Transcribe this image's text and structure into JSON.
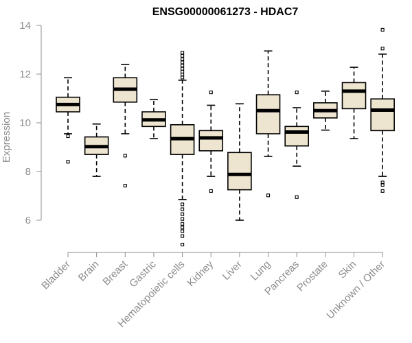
{
  "chart_data": {
    "type": "boxplot",
    "title": "ENSG00000061273 - HDAC7",
    "xlabel": "",
    "ylabel": "Expression",
    "ylim": [
      5,
      14
    ],
    "yticks": [
      6,
      8,
      10,
      12,
      14
    ],
    "grid": false,
    "colors": {
      "box_fill": "#ede5cf",
      "box_stroke": "#000000",
      "axis": "#8c8c8c"
    },
    "categories": [
      "Bladder",
      "Brain",
      "Breast",
      "Gastric",
      "Hematopoietic cells",
      "Kidney",
      "Liver",
      "Lung",
      "Pancreas",
      "Prostate",
      "Skin",
      "Unknown / Other"
    ],
    "boxes": [
      {
        "name": "Bladder",
        "whisker_low": 9.55,
        "q1": 10.45,
        "median": 10.75,
        "q3": 11.05,
        "whisker_high": 11.85,
        "outliers": [
          9.45,
          8.4
        ]
      },
      {
        "name": "Brain",
        "whisker_low": 7.8,
        "q1": 8.7,
        "median": 9.02,
        "q3": 9.42,
        "whisker_high": 9.95,
        "outliers": []
      },
      {
        "name": "Breast",
        "whisker_low": 9.55,
        "q1": 10.85,
        "median": 11.38,
        "q3": 11.85,
        "whisker_high": 12.4,
        "outliers": [
          8.65,
          7.42
        ]
      },
      {
        "name": "Gastric",
        "whisker_low": 9.35,
        "q1": 9.85,
        "median": 10.12,
        "q3": 10.45,
        "whisker_high": 10.95,
        "outliers": []
      },
      {
        "name": "Hematopoietic cells",
        "whisker_low": 6.85,
        "q1": 8.7,
        "median": 9.35,
        "q3": 9.92,
        "whisker_high": 11.75,
        "outliers": [
          12.88,
          12.75,
          12.62,
          12.48,
          12.35,
          12.22,
          12.1,
          11.98,
          11.86,
          6.65,
          6.45,
          6.25,
          6.05,
          5.85,
          5.7,
          5.55,
          5.35,
          5.0
        ]
      },
      {
        "name": "Kidney",
        "whisker_low": 7.8,
        "q1": 8.85,
        "median": 9.38,
        "q3": 9.68,
        "whisker_high": 10.72,
        "outliers": [
          11.25,
          7.2
        ]
      },
      {
        "name": "Liver",
        "whisker_low": 6.0,
        "q1": 7.25,
        "median": 7.88,
        "q3": 8.78,
        "whisker_high": 10.78,
        "outliers": []
      },
      {
        "name": "Lung",
        "whisker_low": 8.62,
        "q1": 9.55,
        "median": 10.5,
        "q3": 11.15,
        "whisker_high": 12.95,
        "outliers": [
          7.02
        ]
      },
      {
        "name": "Pancreas",
        "whisker_low": 8.22,
        "q1": 9.05,
        "median": 9.62,
        "q3": 9.85,
        "whisker_high": 10.62,
        "outliers": [
          11.25,
          6.95
        ]
      },
      {
        "name": "Prostate",
        "whisker_low": 9.7,
        "q1": 10.2,
        "median": 10.5,
        "q3": 10.82,
        "whisker_high": 11.3,
        "outliers": []
      },
      {
        "name": "Skin",
        "whisker_low": 9.35,
        "q1": 10.58,
        "median": 11.3,
        "q3": 11.65,
        "whisker_high": 12.28,
        "outliers": []
      },
      {
        "name": "Unknown / Other",
        "whisker_low": 7.8,
        "q1": 9.68,
        "median": 10.52,
        "q3": 10.98,
        "whisker_high": 12.82,
        "outliers": [
          13.82,
          13.05,
          7.55,
          7.45,
          7.2
        ]
      }
    ]
  }
}
